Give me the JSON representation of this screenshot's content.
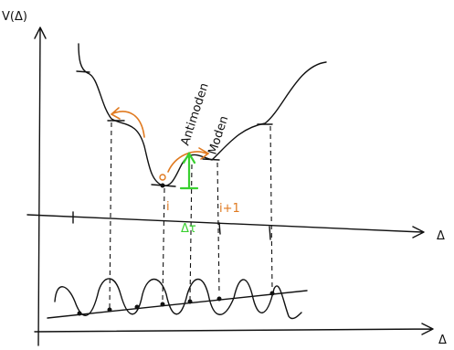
{
  "axis_label_y": "V(Δ)",
  "axis_label_x_middle": "Δ",
  "axis_label_x_bottom": "Δ",
  "annotations": {
    "antimoden": "Antimoden",
    "moden": "Moden",
    "i": "i",
    "i_plus_1": "i+1",
    "delta": "Δτ"
  }
}
